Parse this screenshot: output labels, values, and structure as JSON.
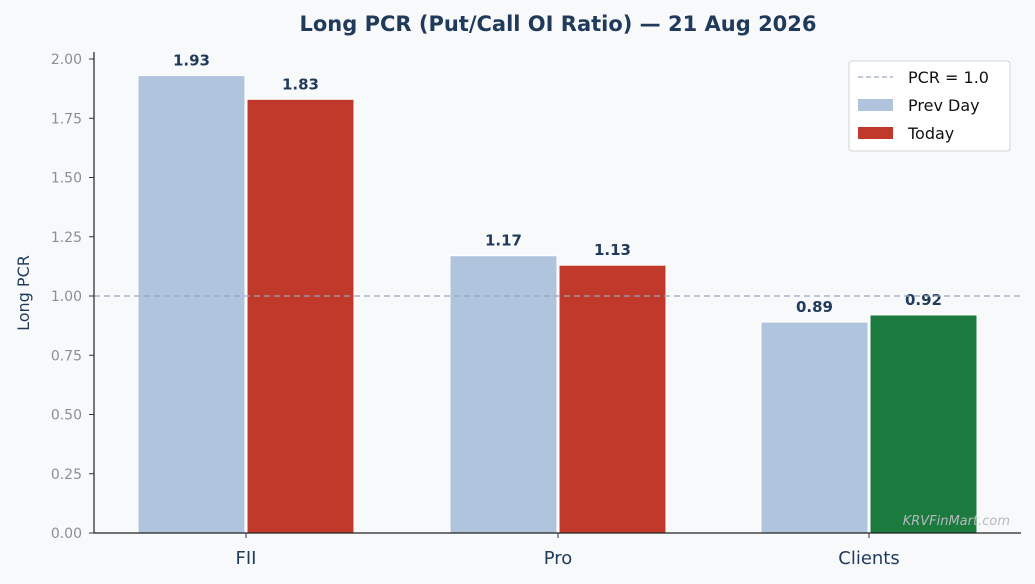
{
  "chart_data": {
    "type": "bar",
    "title": "Long PCR (Put/Call OI Ratio) — 21 Aug 2026",
    "xlabel": "",
    "ylabel": "Long PCR",
    "categories": [
      "FII",
      "Pro",
      "Clients"
    ],
    "series": [
      {
        "name": "Prev Day",
        "values": [
          1.93,
          1.17,
          0.89
        ],
        "color": "#b0c4de"
      },
      {
        "name": "Today",
        "values": [
          1.83,
          1.13,
          0.92
        ],
        "colors": [
          "#c0392b",
          "#c0392b",
          "#1b7a3e"
        ]
      }
    ],
    "value_labels": {
      "prev": [
        "1.93",
        "1.17",
        "0.89"
      ],
      "today": [
        "1.83",
        "1.13",
        "0.92"
      ]
    },
    "reference_line": {
      "value": 1.0,
      "label": "PCR = 1.0",
      "color": "#9aa6bd"
    },
    "ylim": [
      0,
      2.0
    ],
    "yticks": [
      "0.00",
      "0.25",
      "0.50",
      "0.75",
      "1.00",
      "1.25",
      "1.50",
      "1.75",
      "2.00"
    ],
    "grid": false,
    "legend": "top-right",
    "legend_entries": [
      "PCR = 1.0",
      "Prev Day",
      "Today"
    ],
    "legend_today_color": "#c0392b",
    "watermark": "KRVFinMart.com"
  }
}
